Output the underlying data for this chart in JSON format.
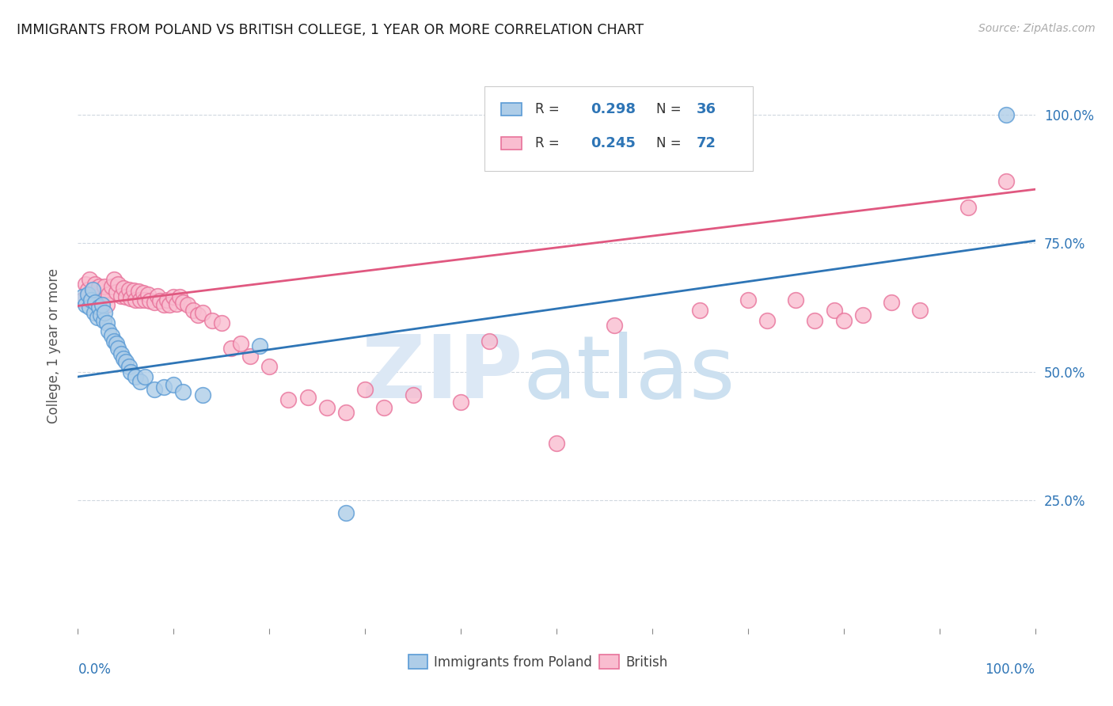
{
  "title": "IMMIGRANTS FROM POLAND VS BRITISH COLLEGE, 1 YEAR OR MORE CORRELATION CHART",
  "source": "Source: ZipAtlas.com",
  "ylabel": "College, 1 year or more",
  "legend_label1": "Immigrants from Poland",
  "legend_label2": "British",
  "r1_text": "R = 0.298",
  "n1_text": "N = 36",
  "r2_text": "R = 0.245",
  "n2_text": "N = 72",
  "r1_val": "0.298",
  "n1_val": "36",
  "r2_val": "0.245",
  "n2_val": "72",
  "blue_color": "#aecde8",
  "blue_edge_color": "#5b9bd5",
  "pink_color": "#f9bdd0",
  "pink_edge_color": "#e8729a",
  "blue_line_color": "#2e75b6",
  "pink_line_color": "#e05880",
  "right_axis_color": "#2e75b6",
  "ytick_values": [
    0.25,
    0.5,
    0.75,
    1.0
  ],
  "blue_trend_start": 0.49,
  "blue_trend_end": 0.755,
  "pink_trend_start": 0.628,
  "pink_trend_end": 0.855,
  "blue_x": [
    0.005,
    0.008,
    0.01,
    0.012,
    0.014,
    0.015,
    0.017,
    0.018,
    0.02,
    0.022,
    0.024,
    0.025,
    0.027,
    0.028,
    0.03,
    0.032,
    0.035,
    0.038,
    0.04,
    0.042,
    0.045,
    0.048,
    0.05,
    0.053,
    0.055,
    0.06,
    0.065,
    0.07,
    0.08,
    0.09,
    0.1,
    0.11,
    0.13,
    0.19,
    0.28,
    0.97
  ],
  "blue_y": [
    0.645,
    0.63,
    0.65,
    0.625,
    0.64,
    0.66,
    0.615,
    0.635,
    0.605,
    0.625,
    0.61,
    0.63,
    0.6,
    0.615,
    0.595,
    0.58,
    0.57,
    0.56,
    0.555,
    0.545,
    0.535,
    0.525,
    0.52,
    0.51,
    0.5,
    0.49,
    0.48,
    0.49,
    0.465,
    0.47,
    0.475,
    0.46,
    0.455,
    0.55,
    0.225,
    1.0
  ],
  "pink_x": [
    0.005,
    0.008,
    0.01,
    0.012,
    0.015,
    0.018,
    0.02,
    0.022,
    0.025,
    0.028,
    0.03,
    0.032,
    0.035,
    0.038,
    0.04,
    0.042,
    0.045,
    0.048,
    0.05,
    0.053,
    0.055,
    0.058,
    0.06,
    0.063,
    0.065,
    0.068,
    0.07,
    0.073,
    0.075,
    0.08,
    0.083,
    0.086,
    0.09,
    0.093,
    0.096,
    0.1,
    0.103,
    0.106,
    0.11,
    0.115,
    0.12,
    0.125,
    0.13,
    0.14,
    0.15,
    0.16,
    0.17,
    0.18,
    0.2,
    0.22,
    0.24,
    0.26,
    0.28,
    0.3,
    0.32,
    0.35,
    0.4,
    0.43,
    0.5,
    0.56,
    0.65,
    0.7,
    0.72,
    0.75,
    0.77,
    0.79,
    0.8,
    0.82,
    0.85,
    0.88,
    0.93,
    0.97
  ],
  "pink_y": [
    0.64,
    0.67,
    0.66,
    0.68,
    0.65,
    0.67,
    0.645,
    0.665,
    0.64,
    0.665,
    0.63,
    0.65,
    0.665,
    0.68,
    0.655,
    0.67,
    0.648,
    0.662,
    0.645,
    0.66,
    0.643,
    0.658,
    0.64,
    0.656,
    0.64,
    0.654,
    0.64,
    0.65,
    0.638,
    0.635,
    0.648,
    0.638,
    0.63,
    0.64,
    0.63,
    0.645,
    0.632,
    0.645,
    0.635,
    0.63,
    0.62,
    0.61,
    0.615,
    0.6,
    0.595,
    0.545,
    0.555,
    0.53,
    0.51,
    0.445,
    0.45,
    0.43,
    0.42,
    0.465,
    0.43,
    0.455,
    0.44,
    0.56,
    0.36,
    0.59,
    0.62,
    0.64,
    0.6,
    0.64,
    0.6,
    0.62,
    0.6,
    0.61,
    0.635,
    0.62,
    0.82,
    0.87
  ],
  "xmin": 0.0,
  "xmax": 1.0,
  "ymin": 0.0,
  "ymax": 1.1,
  "watermark_zip_color": "#dce8f5",
  "watermark_atlas_color": "#cce0f0",
  "background_color": "#ffffff",
  "grid_color": "#d0d8e0"
}
